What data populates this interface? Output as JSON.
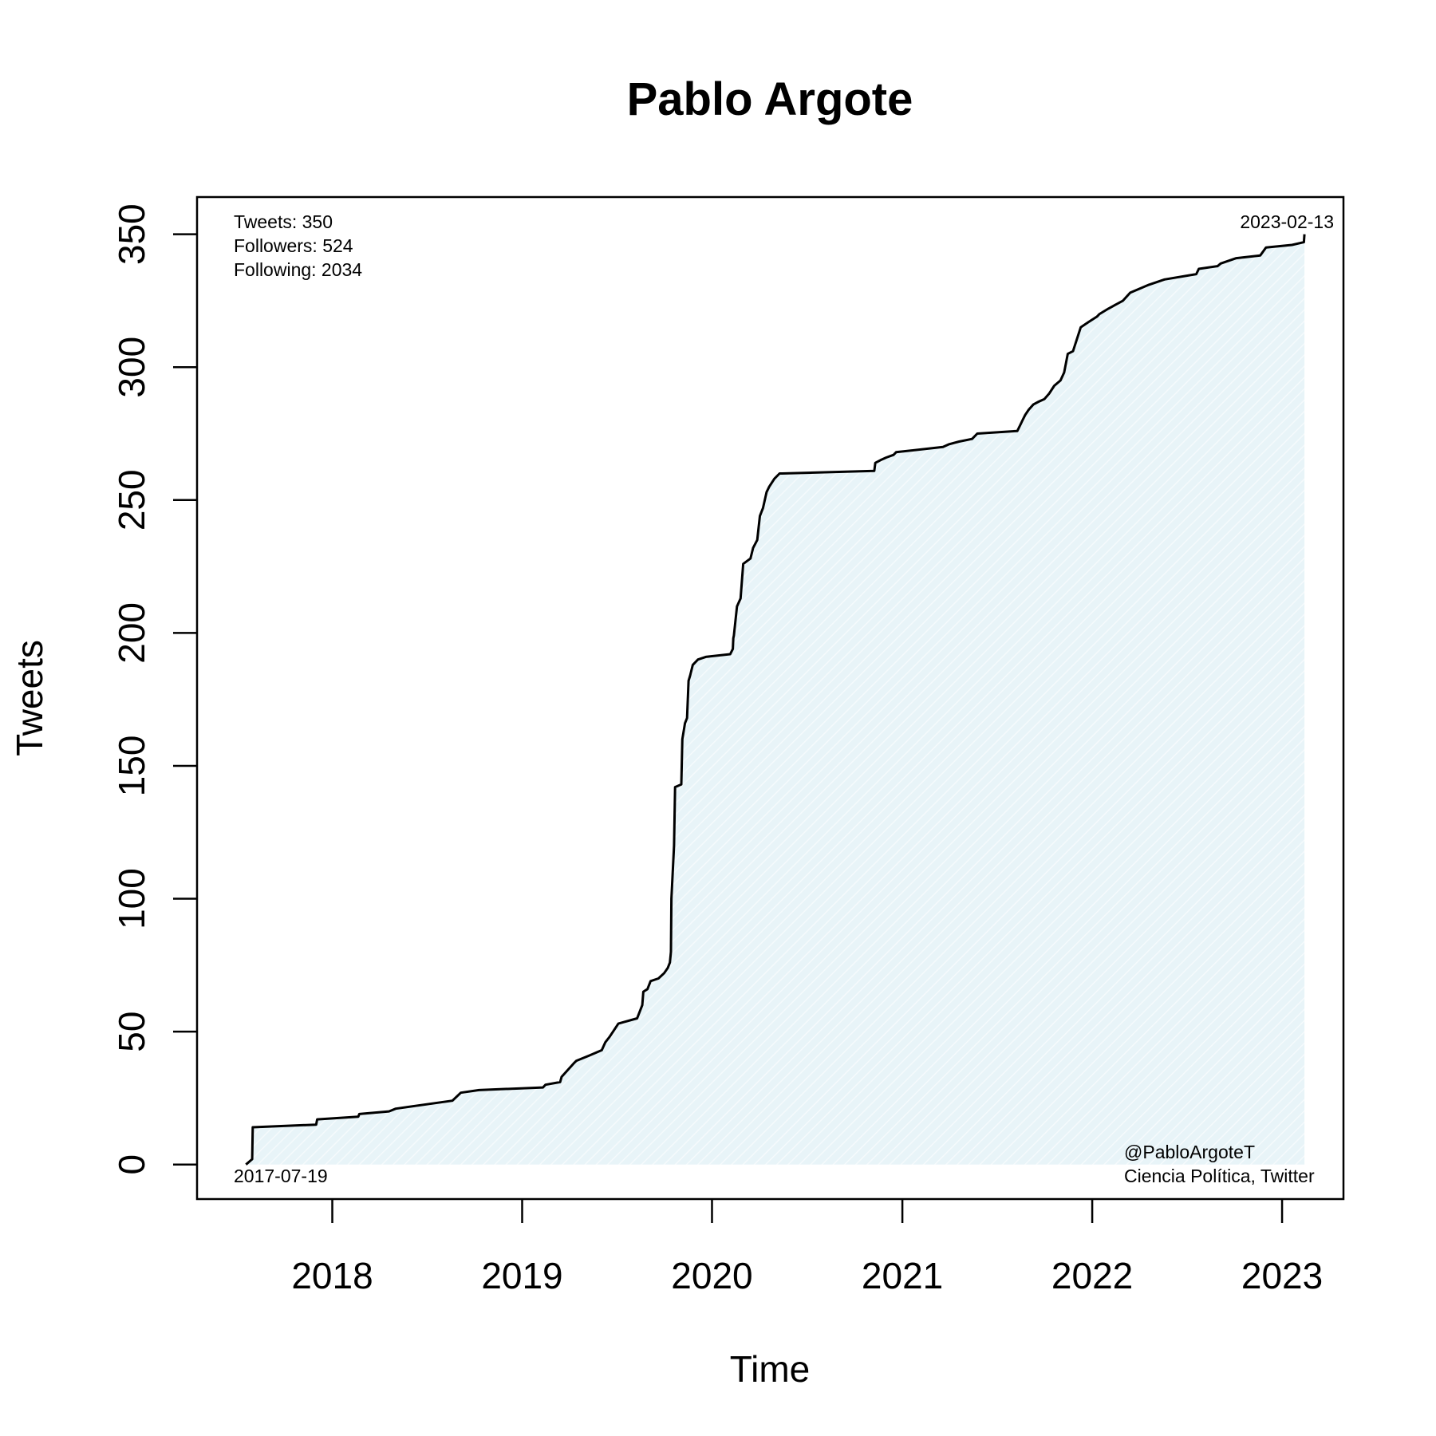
{
  "chart_data": {
    "type": "area",
    "title": "Pablo Argote",
    "xlabel": "Time",
    "ylabel": "Tweets",
    "x_ticks": [
      "2018",
      "2019",
      "2020",
      "2021",
      "2022",
      "2023"
    ],
    "y_ticks": [
      "0",
      "50",
      "100",
      "150",
      "200",
      "250",
      "300",
      "350"
    ],
    "xlim": [
      "2017-04-16",
      "2023-04-29"
    ],
    "ylim": [
      -13,
      364
    ],
    "grid": false,
    "fill_color": "#e8f4f8",
    "line_color": "#000000",
    "stats": [
      "Tweets: 350",
      "Followers: 524",
      "Following: 2034"
    ],
    "start_label": "2017-07-19",
    "end_label": "2023-02-13",
    "credit": [
      "@PabloArgoteT",
      "Ciencia Política, Twitter"
    ],
    "series": [
      {
        "x": [
          "2017-07-19",
          "2017-07-31",
          "2017-08-01",
          "2017-12-01",
          "2017-12-03",
          "2018-02-20",
          "2018-02-22",
          "2018-04-20",
          "2018-05-03",
          "2018-08-20",
          "2018-09-05",
          "2018-10-10",
          "2019-02-10",
          "2019-02-15",
          "2019-03-15",
          "2019-03-18",
          "2019-04-10",
          "2019-04-15",
          "2019-05-10",
          "2019-06-03",
          "2019-06-10",
          "2019-06-18",
          "2019-07-05",
          "2019-08-10",
          "2019-08-20",
          "2019-08-22",
          "2019-08-30",
          "2019-09-05",
          "2019-09-20",
          "2019-10-01",
          "2019-10-08",
          "2019-10-12",
          "2019-10-14",
          "2019-10-15",
          "2019-10-20",
          "2019-10-22",
          "2019-11-03",
          "2019-11-05",
          "2019-11-10",
          "2019-11-14",
          "2019-11-17",
          "2019-11-20",
          "2019-11-25",
          "2019-12-05",
          "2019-12-20",
          "2020-02-05",
          "2020-02-10",
          "2020-02-11",
          "2020-02-12",
          "2020-02-18",
          "2020-02-25",
          "2020-03-01",
          "2020-03-15",
          "2020-03-20",
          "2020-03-28",
          "2020-04-02",
          "2020-04-08",
          "2020-04-15",
          "2020-04-20",
          "2020-04-30",
          "2020-05-10",
          "2020-05-15",
          "2020-11-08",
          "2020-11-10",
          "2020-11-20",
          "2020-12-01",
          "2020-12-15",
          "2020-12-20",
          "2021-03-20",
          "2021-04-01",
          "2021-04-20",
          "2021-05-15",
          "2021-05-25",
          "2021-08-10",
          "2021-08-15",
          "2021-08-20",
          "2021-08-25",
          "2021-09-01",
          "2021-09-10",
          "2021-09-20",
          "2021-10-01",
          "2021-10-10",
          "2021-10-20",
          "2021-11-01",
          "2021-11-08",
          "2021-11-15",
          "2021-11-25",
          "2021-12-10",
          "2021-12-25",
          "2022-01-10",
          "2022-01-15",
          "2022-02-01",
          "2022-03-01",
          "2022-03-15",
          "2022-04-20",
          "2022-05-20",
          "2022-07-20",
          "2022-07-25",
          "2022-08-30",
          "2022-09-05",
          "2022-10-05",
          "2022-11-20",
          "2022-12-01",
          "2023-01-20",
          "2023-02-12",
          "2023-02-13"
        ],
        "y": [
          0,
          2,
          14,
          15,
          17,
          18,
          19,
          20,
          21,
          24,
          27,
          28,
          29,
          30,
          31,
          33,
          38,
          39,
          41,
          43,
          46,
          48,
          53,
          55,
          60,
          65,
          66,
          69,
          70,
          72,
          74,
          76,
          80,
          100,
          120,
          142,
          143,
          160,
          166,
          168,
          182,
          184,
          188,
          190,
          191,
          192,
          194,
          198,
          199,
          210,
          213,
          226,
          228,
          232,
          235,
          244,
          247,
          253,
          255,
          258,
          260,
          260,
          261,
          264,
          265,
          266,
          267,
          268,
          270,
          271,
          272,
          273,
          275,
          276,
          278,
          280,
          282,
          284,
          286,
          287,
          288,
          290,
          293,
          295,
          298,
          305,
          306,
          315,
          317,
          319,
          320,
          322,
          325,
          328,
          331,
          333,
          335,
          337,
          338,
          339,
          341,
          342,
          345,
          346,
          347,
          350
        ]
      }
    ]
  }
}
